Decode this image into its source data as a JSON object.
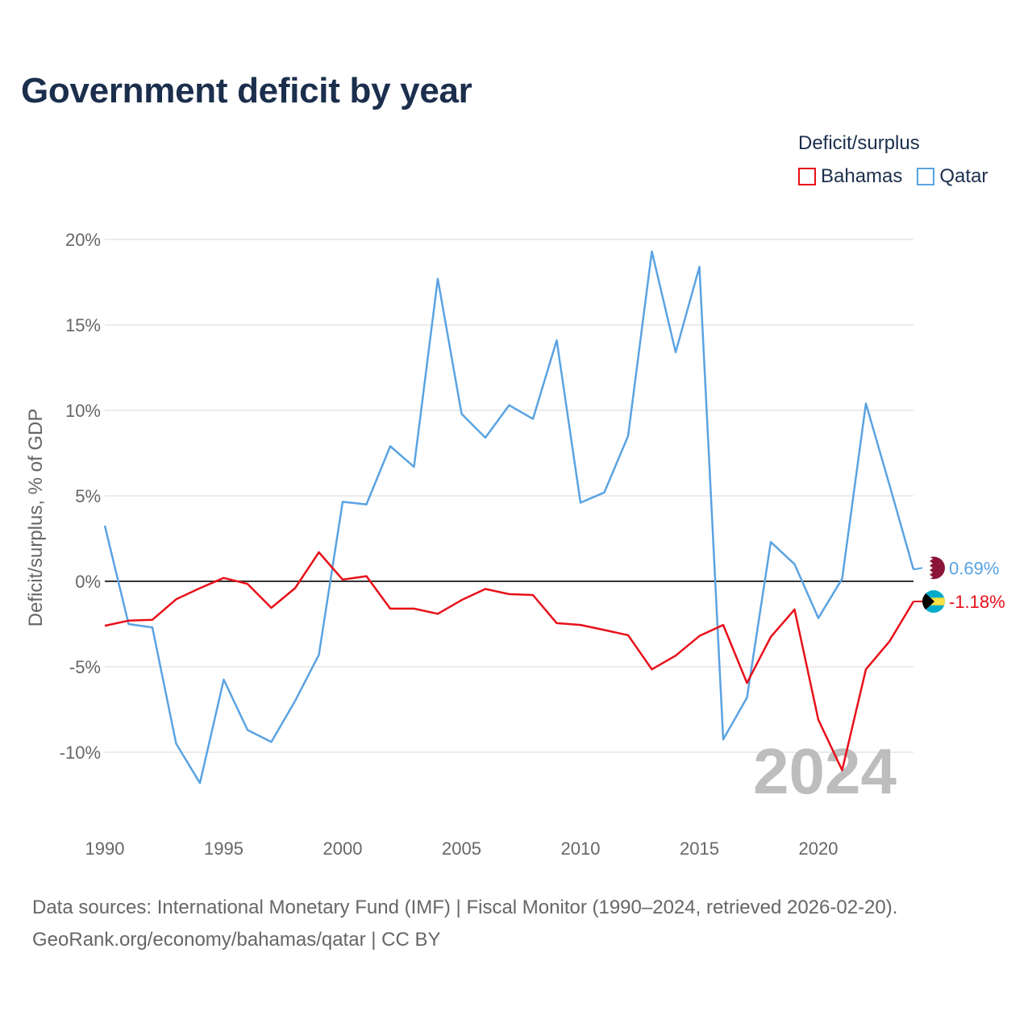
{
  "title": "Government deficit by year",
  "legend_title": "Deficit/surplus",
  "footer": {
    "line1": "Data sources: International Monetary Fund (IMF) | Fiscal Monitor (1990–2024, retrieved 2026-02-20).",
    "line2": "GeoRank.org/economy/bahamas/qatar | CC BY"
  },
  "colors": {
    "bahamas": "#e8101a",
    "qatar": "#5aa3e2",
    "grid": "#e6e6e6",
    "zero": "#333333"
  },
  "chart_data": {
    "type": "line",
    "title": "Government deficit by year",
    "ylabel": "Deficit/surplus, % of GDP",
    "xlabel": "",
    "xlim": [
      1990,
      2024
    ],
    "ylim": [
      -12.5,
      20
    ],
    "y_ticks": [
      20,
      15,
      10,
      5,
      0,
      -5,
      -10
    ],
    "y_tick_labels": [
      "20%",
      "15%",
      "10%",
      "5%",
      "0%",
      "-5%",
      "-10%"
    ],
    "x_ticks": [
      1990,
      1995,
      2000,
      2005,
      2010,
      2015,
      2020
    ],
    "x_tick_labels": [
      "1990",
      "1995",
      "2000",
      "2005",
      "2010",
      "2015",
      "2020"
    ],
    "legend_position": "top-right",
    "current_year_label": "2024",
    "x": [
      1990,
      1991,
      1992,
      1993,
      1994,
      1995,
      1996,
      1997,
      1998,
      1999,
      2000,
      2001,
      2002,
      2003,
      2004,
      2005,
      2006,
      2007,
      2008,
      2009,
      2010,
      2011,
      2012,
      2013,
      2014,
      2015,
      2016,
      2017,
      2018,
      2019,
      2020,
      2021,
      2022,
      2023,
      2024
    ],
    "series": [
      {
        "name": "Bahamas",
        "color": "#e8101a",
        "end_label": "-1.18%",
        "flag": "bahamas-flag",
        "values": [
          -2.6,
          -2.3,
          -2.25,
          -1.05,
          -0.4,
          0.2,
          -0.15,
          -1.55,
          -0.4,
          1.7,
          0.1,
          0.3,
          -1.6,
          -1.6,
          -1.9,
          -1.1,
          -0.45,
          -0.75,
          -0.8,
          -2.45,
          -2.55,
          -2.85,
          -3.15,
          -5.15,
          -4.35,
          -3.2,
          -2.55,
          -5.95,
          -3.25,
          -1.65,
          -8.1,
          -11.05,
          -5.15,
          -3.5,
          -1.18
        ]
      },
      {
        "name": "Qatar",
        "color": "#5aa3e2",
        "end_label": "0.69%",
        "flag": "qatar-flag",
        "values": [
          3.25,
          -2.5,
          -2.7,
          -9.5,
          -11.8,
          -5.75,
          -8.7,
          -9.4,
          -7.0,
          -4.3,
          4.65,
          4.5,
          7.9,
          6.7,
          17.7,
          9.8,
          8.4,
          10.3,
          9.5,
          14.1,
          4.6,
          5.2,
          8.5,
          19.3,
          13.4,
          18.4,
          -9.25,
          -6.8,
          2.3,
          1.0,
          -2.15,
          0.15,
          10.4,
          5.6,
          0.69
        ]
      }
    ]
  }
}
